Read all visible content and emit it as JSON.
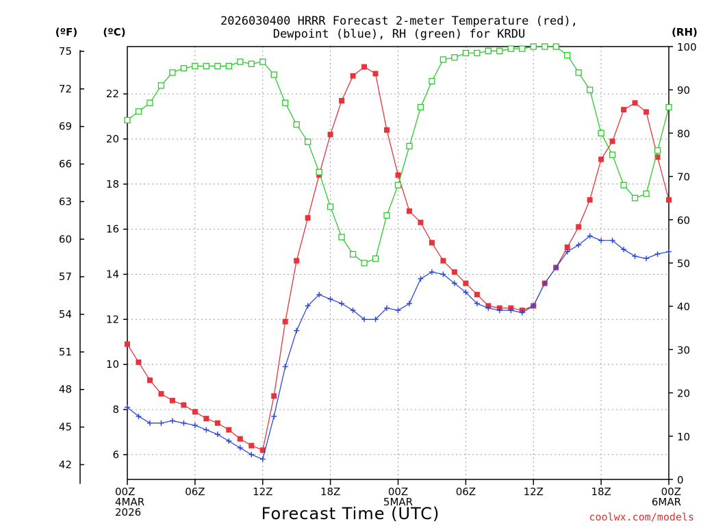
{
  "chart_data": {
    "type": "line",
    "title_lines": [
      "2026030400 HRRR Forecast 2-meter Temperature (red),",
      "Dewpoint (blue), RH (green) for KRDU"
    ],
    "xlabel": "Forecast Time (UTC)",
    "credit": "coolwx.com/models",
    "units": {
      "fahrenheit": "(ºF)",
      "celsius": "(ºC)",
      "rh": "(RH)"
    },
    "x_range": [
      0,
      48
    ],
    "x_ticks": [
      {
        "hour": 0,
        "lines": [
          "00Z",
          "4MAR",
          "2026"
        ]
      },
      {
        "hour": 6,
        "lines": [
          "06Z"
        ]
      },
      {
        "hour": 12,
        "lines": [
          "12Z"
        ]
      },
      {
        "hour": 18,
        "lines": [
          "18Z"
        ]
      },
      {
        "hour": 24,
        "lines": [
          "00Z",
          "5MAR"
        ]
      },
      {
        "hour": 30,
        "lines": [
          "06Z"
        ]
      },
      {
        "hour": 36,
        "lines": [
          "12Z"
        ]
      },
      {
        "hour": 42,
        "lines": [
          "18Z"
        ]
      },
      {
        "hour": 48,
        "lines": [
          "00Z",
          "6MAR"
        ]
      }
    ],
    "celsius_axis": {
      "range": [
        4.9,
        24.1
      ],
      "ticks": [
        6,
        8,
        10,
        12,
        14,
        16,
        18,
        20,
        22
      ]
    },
    "fahrenheit_axis": {
      "ticks": [
        42,
        45,
        48,
        51,
        54,
        57,
        60,
        63,
        66,
        69,
        72,
        75
      ]
    },
    "rh_axis": {
      "range": [
        0,
        100
      ],
      "ticks": [
        0,
        10,
        20,
        30,
        40,
        50,
        60,
        70,
        80,
        90,
        100
      ]
    },
    "grid": true,
    "series": [
      {
        "name": "Temperature",
        "axis": "celsius",
        "color": "#e8333a",
        "marker": "filled-square",
        "x": [
          0,
          1,
          2,
          3,
          4,
          5,
          6,
          7,
          8,
          9,
          10,
          11,
          12,
          13,
          14,
          15,
          16,
          17,
          18,
          19,
          20,
          21,
          22,
          23,
          24,
          25,
          26,
          27,
          28,
          29,
          30,
          31,
          32,
          33,
          34,
          35,
          36,
          37,
          38,
          39,
          40,
          41,
          42,
          43,
          44,
          45,
          46,
          47,
          48
        ],
        "values": [
          10.9,
          10.1,
          9.3,
          8.7,
          8.4,
          8.2,
          7.9,
          7.6,
          7.4,
          7.1,
          6.7,
          6.4,
          6.2,
          8.6,
          11.9,
          14.6,
          16.5,
          18.4,
          20.2,
          21.7,
          22.8,
          23.2,
          22.9,
          20.4,
          18.4,
          16.8,
          16.3,
          15.4,
          14.6,
          14.1,
          13.6,
          13.1,
          12.6,
          12.5,
          12.5,
          12.4,
          12.6,
          13.6,
          14.3,
          15.2,
          16.1,
          17.3,
          19.1,
          19.9,
          21.3,
          21.6,
          21.2,
          19.2,
          17.3
        ]
      },
      {
        "name": "Dewpoint",
        "axis": "celsius",
        "color": "#2c49dc",
        "marker": "plus",
        "x": [
          0,
          1,
          2,
          3,
          4,
          5,
          6,
          7,
          8,
          9,
          10,
          11,
          12,
          13,
          14,
          15,
          16,
          17,
          18,
          19,
          20,
          21,
          22,
          23,
          24,
          25,
          26,
          27,
          28,
          29,
          30,
          31,
          32,
          33,
          34,
          35,
          36,
          37,
          38,
          39,
          40,
          41,
          42,
          43,
          44,
          45,
          46,
          47,
          48
        ],
        "values": [
          8.1,
          7.7,
          7.4,
          7.4,
          7.5,
          7.4,
          7.3,
          7.1,
          6.9,
          6.6,
          6.3,
          6.0,
          5.8,
          7.7,
          9.9,
          11.5,
          12.6,
          13.1,
          12.9,
          12.7,
          12.4,
          12.0,
          12.0,
          12.5,
          12.4,
          12.7,
          13.8,
          14.1,
          14.0,
          13.6,
          13.2,
          12.7,
          12.5,
          12.4,
          12.4,
          12.3,
          12.6,
          13.6,
          14.3,
          15.0,
          15.3,
          15.7,
          15.5,
          15.5,
          15.1,
          14.8,
          14.7,
          14.9,
          15.0
        ]
      },
      {
        "name": "RH",
        "axis": "rh",
        "color": "#2ec830",
        "marker": "open-square",
        "x": [
          0,
          1,
          2,
          3,
          4,
          5,
          6,
          7,
          8,
          9,
          10,
          11,
          12,
          13,
          14,
          15,
          16,
          17,
          18,
          19,
          20,
          21,
          22,
          23,
          24,
          25,
          26,
          27,
          28,
          29,
          30,
          31,
          32,
          33,
          34,
          35,
          36,
          37,
          38,
          39,
          40,
          41,
          42,
          43,
          44,
          45,
          46,
          47,
          48
        ],
        "values": [
          83,
          85,
          87,
          91,
          94,
          95,
          95.5,
          95.5,
          95.5,
          95.5,
          96.5,
          96,
          96.5,
          93.5,
          87,
          82,
          78,
          71,
          63,
          56,
          52,
          50,
          51,
          61,
          68,
          77,
          86,
          92,
          97,
          97.5,
          98.5,
          98.5,
          99,
          99,
          99.5,
          99.5,
          100,
          100,
          100,
          98,
          94,
          90,
          80,
          75,
          68,
          65,
          66,
          76,
          86
        ]
      }
    ]
  }
}
